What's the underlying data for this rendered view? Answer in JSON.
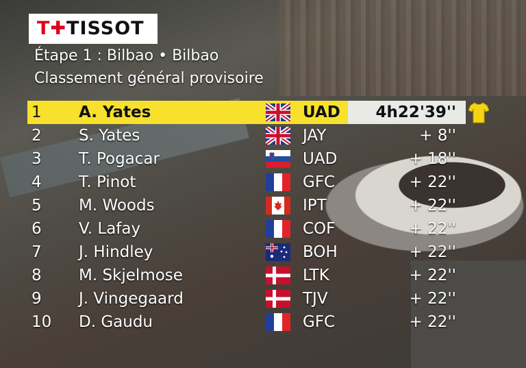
{
  "brand": {
    "logo_text": "TISSOT"
  },
  "header": {
    "stage": "Étape 1 : Bilbao • Bilbao",
    "classification": "Classement général provisoire"
  },
  "colors": {
    "leader_band": "#f7e12d",
    "time_box": "#e9e9e6"
  },
  "standings": [
    {
      "pos": "1",
      "name": "A. Yates",
      "flag": "united-kingdom-flag",
      "team": "UAD",
      "time": "4h22'39''"
    },
    {
      "pos": "2",
      "name": "S. Yates",
      "flag": "united-kingdom-flag",
      "team": "JAY",
      "time": "+ 8''"
    },
    {
      "pos": "3",
      "name": "T. Pogacar",
      "flag": "slovenia-flag",
      "team": "UAD",
      "time": "+ 18''"
    },
    {
      "pos": "4",
      "name": "T. Pinot",
      "flag": "france-flag",
      "team": "GFC",
      "time": "+ 22''"
    },
    {
      "pos": "5",
      "name": "M. Woods",
      "flag": "canada-flag",
      "team": "IPT",
      "time": "+ 22''"
    },
    {
      "pos": "6",
      "name": "V. Lafay",
      "flag": "france-flag",
      "team": "COF",
      "time": "+ 22''"
    },
    {
      "pos": "7",
      "name": "J. Hindley",
      "flag": "australia-flag",
      "team": "BOH",
      "time": "+ 22''"
    },
    {
      "pos": "8",
      "name": "M. Skjelmose",
      "flag": "denmark-flag",
      "team": "LTK",
      "time": "+ 22''"
    },
    {
      "pos": "9",
      "name": "J. Vingegaard",
      "flag": "denmark-flag",
      "team": "TJV",
      "time": "+ 22''"
    },
    {
      "pos": "10",
      "name": "D. Gaudu",
      "flag": "france-flag",
      "team": "GFC",
      "time": "+ 22''"
    }
  ],
  "leader_icon": "yellow-jersey-icon"
}
